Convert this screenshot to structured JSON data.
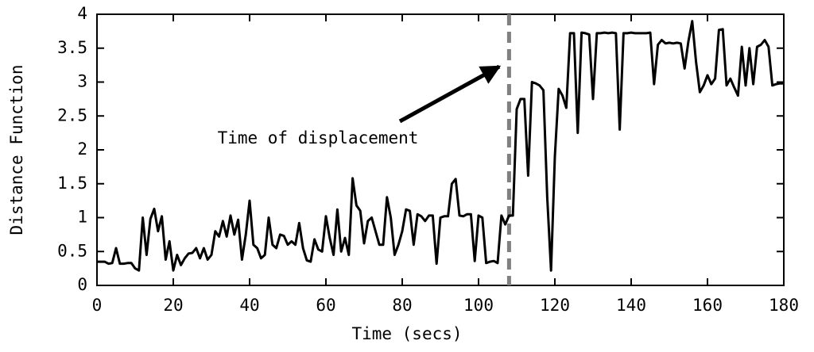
{
  "chart_data": {
    "type": "line",
    "xlabel": "Time (secs)",
    "ylabel": "Distance Function",
    "annotation": {
      "text": "Time of displacement",
      "x": 108
    },
    "color": "#000000",
    "x": [
      0,
      1,
      2,
      3,
      4,
      5,
      6,
      7,
      8,
      9,
      10,
      11,
      12,
      13,
      14,
      15,
      16,
      17,
      18,
      19,
      20,
      21,
      22,
      23,
      24,
      25,
      26,
      27,
      28,
      29,
      30,
      31,
      32,
      33,
      34,
      35,
      36,
      37,
      38,
      39,
      40,
      41,
      42,
      43,
      44,
      45,
      46,
      47,
      48,
      49,
      50,
      51,
      52,
      53,
      54,
      55,
      56,
      57,
      58,
      59,
      60,
      61,
      62,
      63,
      64,
      65,
      66,
      67,
      68,
      69,
      70,
      71,
      72,
      73,
      74,
      75,
      76,
      77,
      78,
      79,
      80,
      81,
      82,
      83,
      84,
      85,
      86,
      87,
      88,
      89,
      90,
      91,
      92,
      93,
      94,
      95,
      96,
      97,
      98,
      99,
      100,
      101,
      102,
      103,
      104,
      105,
      106,
      107,
      108,
      109,
      110,
      111,
      112,
      113,
      114,
      115,
      116,
      117,
      118,
      119,
      120,
      121,
      122,
      123,
      124,
      125,
      126,
      127,
      128,
      129,
      130,
      131,
      132,
      133,
      134,
      135,
      136,
      137,
      138,
      139,
      140,
      141,
      142,
      143,
      144,
      145,
      146,
      147,
      148,
      149,
      150,
      151,
      152,
      153,
      154,
      155,
      156,
      157,
      158,
      159,
      160,
      161,
      162,
      163,
      164,
      165,
      166,
      167,
      168,
      169,
      170,
      171,
      172,
      173,
      174,
      175,
      176,
      177,
      178,
      179,
      180
    ],
    "values": [
      0.35,
      0.35,
      0.35,
      0.32,
      0.33,
      0.55,
      0.32,
      0.32,
      0.33,
      0.33,
      0.25,
      0.22,
      1.0,
      0.45,
      0.98,
      1.13,
      0.8,
      1.02,
      0.38,
      0.65,
      0.22,
      0.45,
      0.3,
      0.4,
      0.47,
      0.48,
      0.55,
      0.4,
      0.55,
      0.38,
      0.45,
      0.8,
      0.72,
      0.95,
      0.72,
      1.03,
      0.75,
      0.97,
      0.38,
      0.75,
      1.25,
      0.6,
      0.55,
      0.4,
      0.45,
      1.0,
      0.6,
      0.55,
      0.75,
      0.73,
      0.6,
      0.65,
      0.6,
      0.92,
      0.55,
      0.37,
      0.35,
      0.68,
      0.53,
      0.5,
      1.02,
      0.7,
      0.45,
      1.12,
      0.5,
      0.7,
      0.45,
      1.58,
      1.18,
      1.1,
      0.62,
      0.95,
      1.0,
      0.8,
      0.6,
      0.6,
      1.3,
      1.0,
      0.45,
      0.6,
      0.8,
      1.12,
      1.1,
      0.6,
      1.05,
      1.02,
      0.95,
      1.03,
      1.03,
      0.32,
      1.0,
      1.02,
      1.02,
      1.5,
      1.57,
      1.03,
      1.02,
      1.05,
      1.05,
      0.36,
      1.03,
      1.0,
      0.33,
      0.35,
      0.36,
      0.33,
      1.03,
      0.9,
      1.03,
      1.03,
      2.6,
      2.75,
      2.75,
      1.62,
      3.0,
      2.98,
      2.95,
      2.88,
      1.3,
      0.22,
      1.9,
      2.9,
      2.8,
      2.62,
      3.72,
      3.72,
      2.25,
      3.73,
      3.72,
      3.7,
      2.75,
      3.72,
      3.72,
      3.73,
      3.72,
      3.73,
      3.72,
      2.3,
      3.72,
      3.72,
      3.73,
      3.72,
      3.72,
      3.72,
      3.72,
      3.73,
      2.97,
      3.55,
      3.62,
      3.57,
      3.58,
      3.57,
      3.58,
      3.57,
      3.2,
      3.6,
      3.9,
      3.3,
      2.85,
      2.95,
      3.1,
      2.97,
      3.05,
      3.77,
      3.78,
      2.95,
      3.05,
      2.92,
      2.8,
      3.52,
      2.95,
      3.5,
      2.97,
      3.52,
      3.55,
      3.62,
      3.52,
      2.95,
      2.97,
      2.98,
      2.98
    ],
    "xlim": [
      0,
      180
    ],
    "xticks": [
      0,
      20,
      40,
      60,
      80,
      100,
      120,
      140,
      160,
      180
    ],
    "ylim": [
      0,
      4
    ],
    "yticks": [
      0,
      0.5,
      1,
      1.5,
      2,
      2.5,
      3,
      3.5,
      4
    ]
  }
}
